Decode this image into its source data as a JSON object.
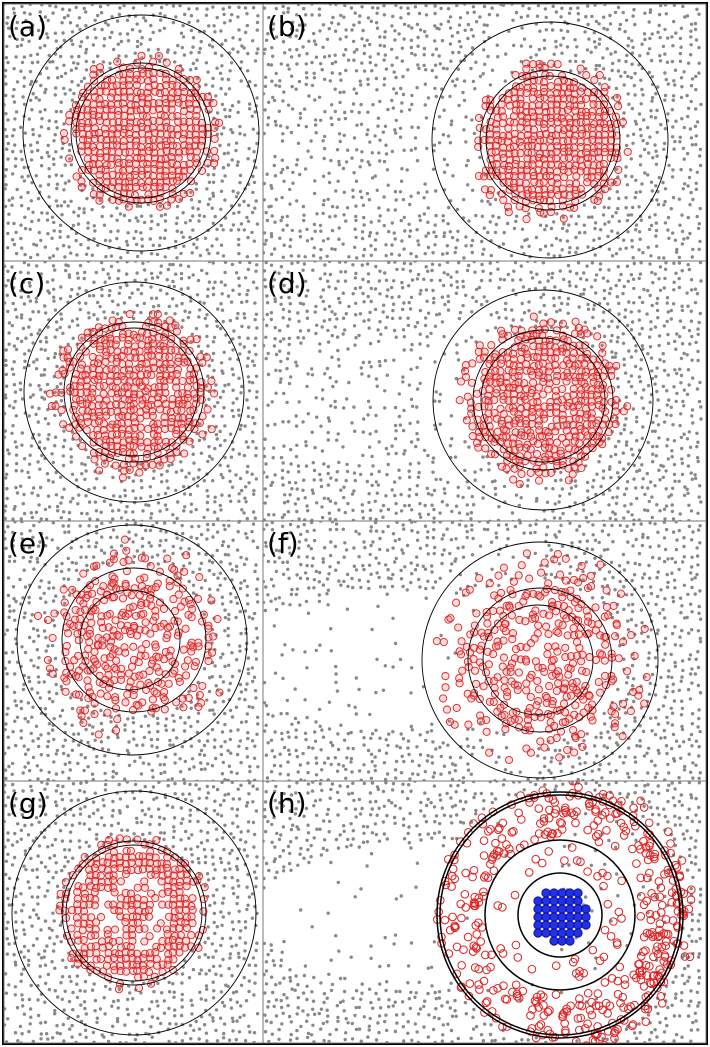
{
  "panels": [
    {
      "label": "(a)"
    },
    {
      "label": "(b)"
    },
    {
      "label": "(c)"
    },
    {
      "label": "(d)"
    },
    {
      "label": "(e)"
    },
    {
      "label": "(f)"
    },
    {
      "label": "(g)"
    },
    {
      "label": "(h)"
    }
  ]
}
